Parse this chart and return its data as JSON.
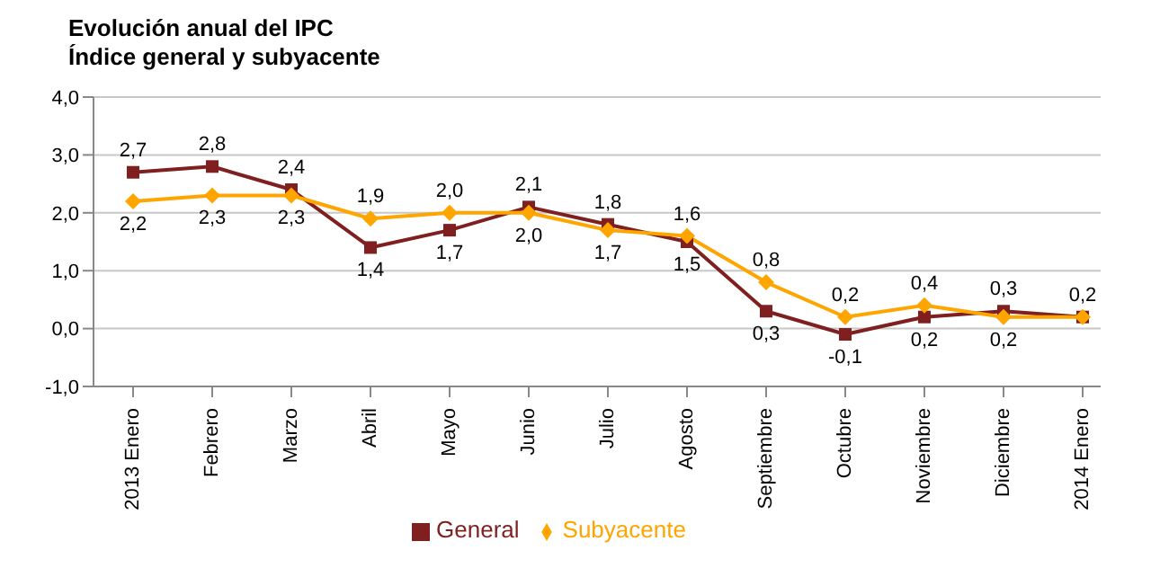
{
  "chart_data": {
    "type": "line",
    "title": "Evolución anual del IPC",
    "subtitle": "Índice general y subyacente",
    "categories": [
      "2013 Enero",
      "Febrero",
      "Marzo",
      "Abril",
      "Mayo",
      "Junio",
      "Julio",
      "Agosto",
      "Septiembre",
      "Octubre",
      "Noviembre",
      "Diciembre",
      "2014 Enero"
    ],
    "series": [
      {
        "name": "General",
        "color": "#7f1f1f",
        "marker": "square",
        "values": [
          2.7,
          2.8,
          2.4,
          1.4,
          1.7,
          2.1,
          1.8,
          1.5,
          0.3,
          -0.1,
          0.2,
          0.3,
          0.2
        ],
        "value_labels": [
          "2,7",
          "2,8",
          "2,4",
          "1,4",
          "1,7",
          "2,1",
          "1,8",
          "1,5",
          "0,3",
          "-0,1",
          "0,2",
          "0,3",
          "0,2"
        ]
      },
      {
        "name": "Subyacente",
        "color": "#ffa500",
        "marker": "diamond",
        "values": [
          2.2,
          2.3,
          2.3,
          1.9,
          2.0,
          2.0,
          1.7,
          1.6,
          0.8,
          0.2,
          0.4,
          0.2,
          0.2
        ],
        "value_labels": [
          "2,2",
          "2,3",
          "2,3",
          "1,9",
          "2,0",
          "2,0",
          "1,7",
          "1,6",
          "0,8",
          "0,2",
          "0,4",
          "0,2",
          null
        ]
      }
    ],
    "ylim": [
      -1.0,
      4.0
    ],
    "yticks": [
      {
        "value": -1.0,
        "label": "-1,0"
      },
      {
        "value": 0.0,
        "label": "0,0"
      },
      {
        "value": 1.0,
        "label": "1,0"
      },
      {
        "value": 2.0,
        "label": "2,0"
      },
      {
        "value": 3.0,
        "label": "3,0"
      },
      {
        "value": 4.0,
        "label": "4,0"
      }
    ],
    "grid": "y",
    "legend": "bottom",
    "line_style": "solid"
  }
}
